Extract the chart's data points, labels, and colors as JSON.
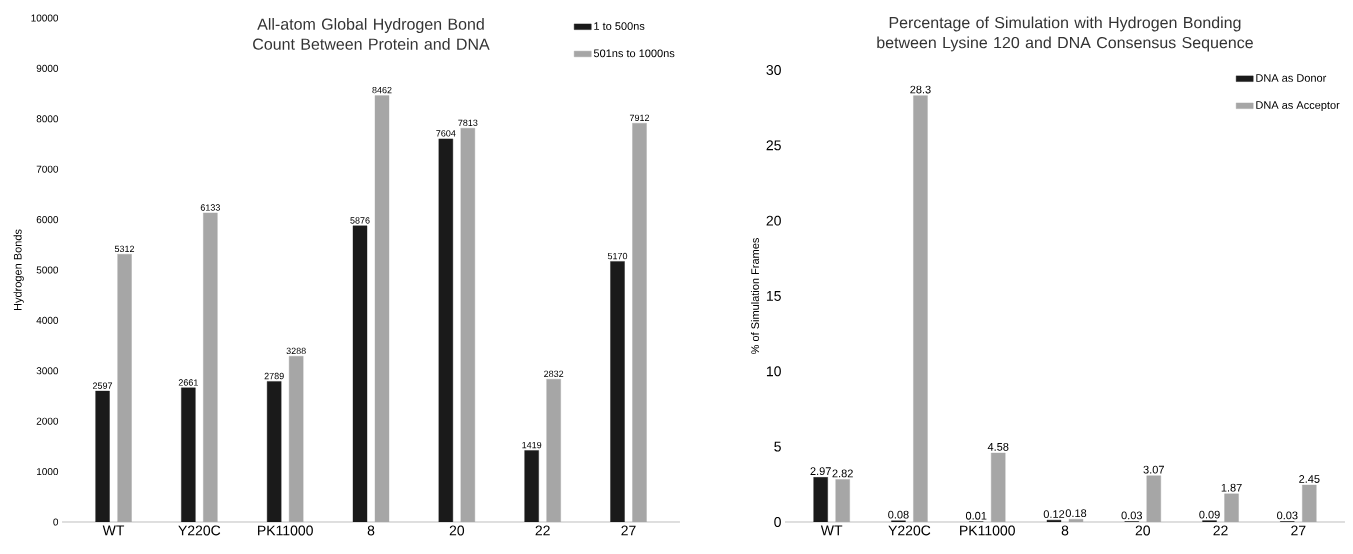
{
  "chart_data": [
    {
      "type": "bar",
      "title": "All-atom Global Hydrogen Bond Count Between Protein and DNA",
      "ylabel": "Hydrogen Bonds",
      "categories": [
        "WT",
        "Y220C",
        "PK11000",
        "8",
        "20",
        "22",
        "27"
      ],
      "series": [
        {
          "name": "1 to 500ns",
          "color": "#1a1a1a",
          "values": [
            2597,
            2661,
            2789,
            5876,
            7604,
            1419,
            5170
          ]
        },
        {
          "name": "501ns to 1000ns",
          "color": "#a6a6a6",
          "values": [
            5312,
            6133,
            3288,
            8462,
            7813,
            2832,
            7912
          ]
        }
      ],
      "ylim": [
        0,
        10000
      ],
      "yticks": [
        0,
        1000,
        2000,
        3000,
        4000,
        5000,
        6000,
        7000,
        8000,
        9000,
        10000
      ],
      "data_labels": true,
      "legend": "top right",
      "grid": false
    },
    {
      "type": "bar",
      "title": "Percentage of Simulation with Hydrogen Bonding between Lysine 120 and DNA Consensus Sequence",
      "ylabel": "% of Simulation Frames",
      "categories": [
        "WT",
        "Y220C",
        "PK11000",
        "8",
        "20",
        "22",
        "27"
      ],
      "series": [
        {
          "name": "DNA as Donor",
          "color": "#1a1a1a",
          "values": [
            2.97,
            0.08,
            0.01,
            0.12,
            0.03,
            0.09,
            0.03
          ]
        },
        {
          "name": "DNA as Acceptor",
          "color": "#a6a6a6",
          "values": [
            2.82,
            28.3,
            4.58,
            0.18,
            3.07,
            1.87,
            2.45
          ]
        }
      ],
      "ylim": [
        0,
        30
      ],
      "yticks": [
        0,
        5,
        10,
        15,
        20,
        25,
        30
      ],
      "data_labels": true,
      "legend": "top right",
      "grid": false
    }
  ]
}
